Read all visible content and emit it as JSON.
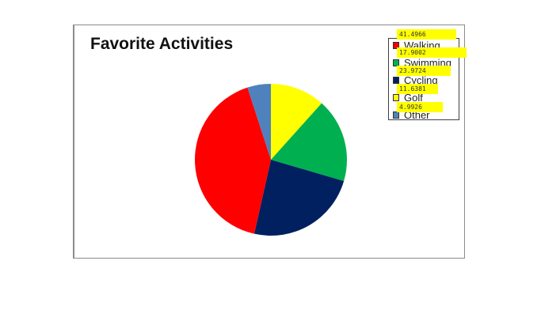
{
  "chart_data": {
    "type": "pie",
    "title": "Favorite Activities",
    "slices": [
      {
        "label": "Golf",
        "value": 11.6381,
        "color": "#ffff00"
      },
      {
        "label": "Swimming",
        "value": 17.9002,
        "color": "#00b050"
      },
      {
        "label": "Cycling",
        "value": 23.9724,
        "color": "#002060"
      },
      {
        "label": "Walking",
        "value": 41.4966,
        "color": "#ff0000"
      },
      {
        "label": "Other",
        "value": 4.9926,
        "color": "#4f81bd"
      }
    ],
    "legend_order": [
      "Walking",
      "Swimming",
      "Cycling",
      "Golf",
      "Other"
    ],
    "legend_position": "top-right",
    "value_tag_color": "#ffff00"
  }
}
